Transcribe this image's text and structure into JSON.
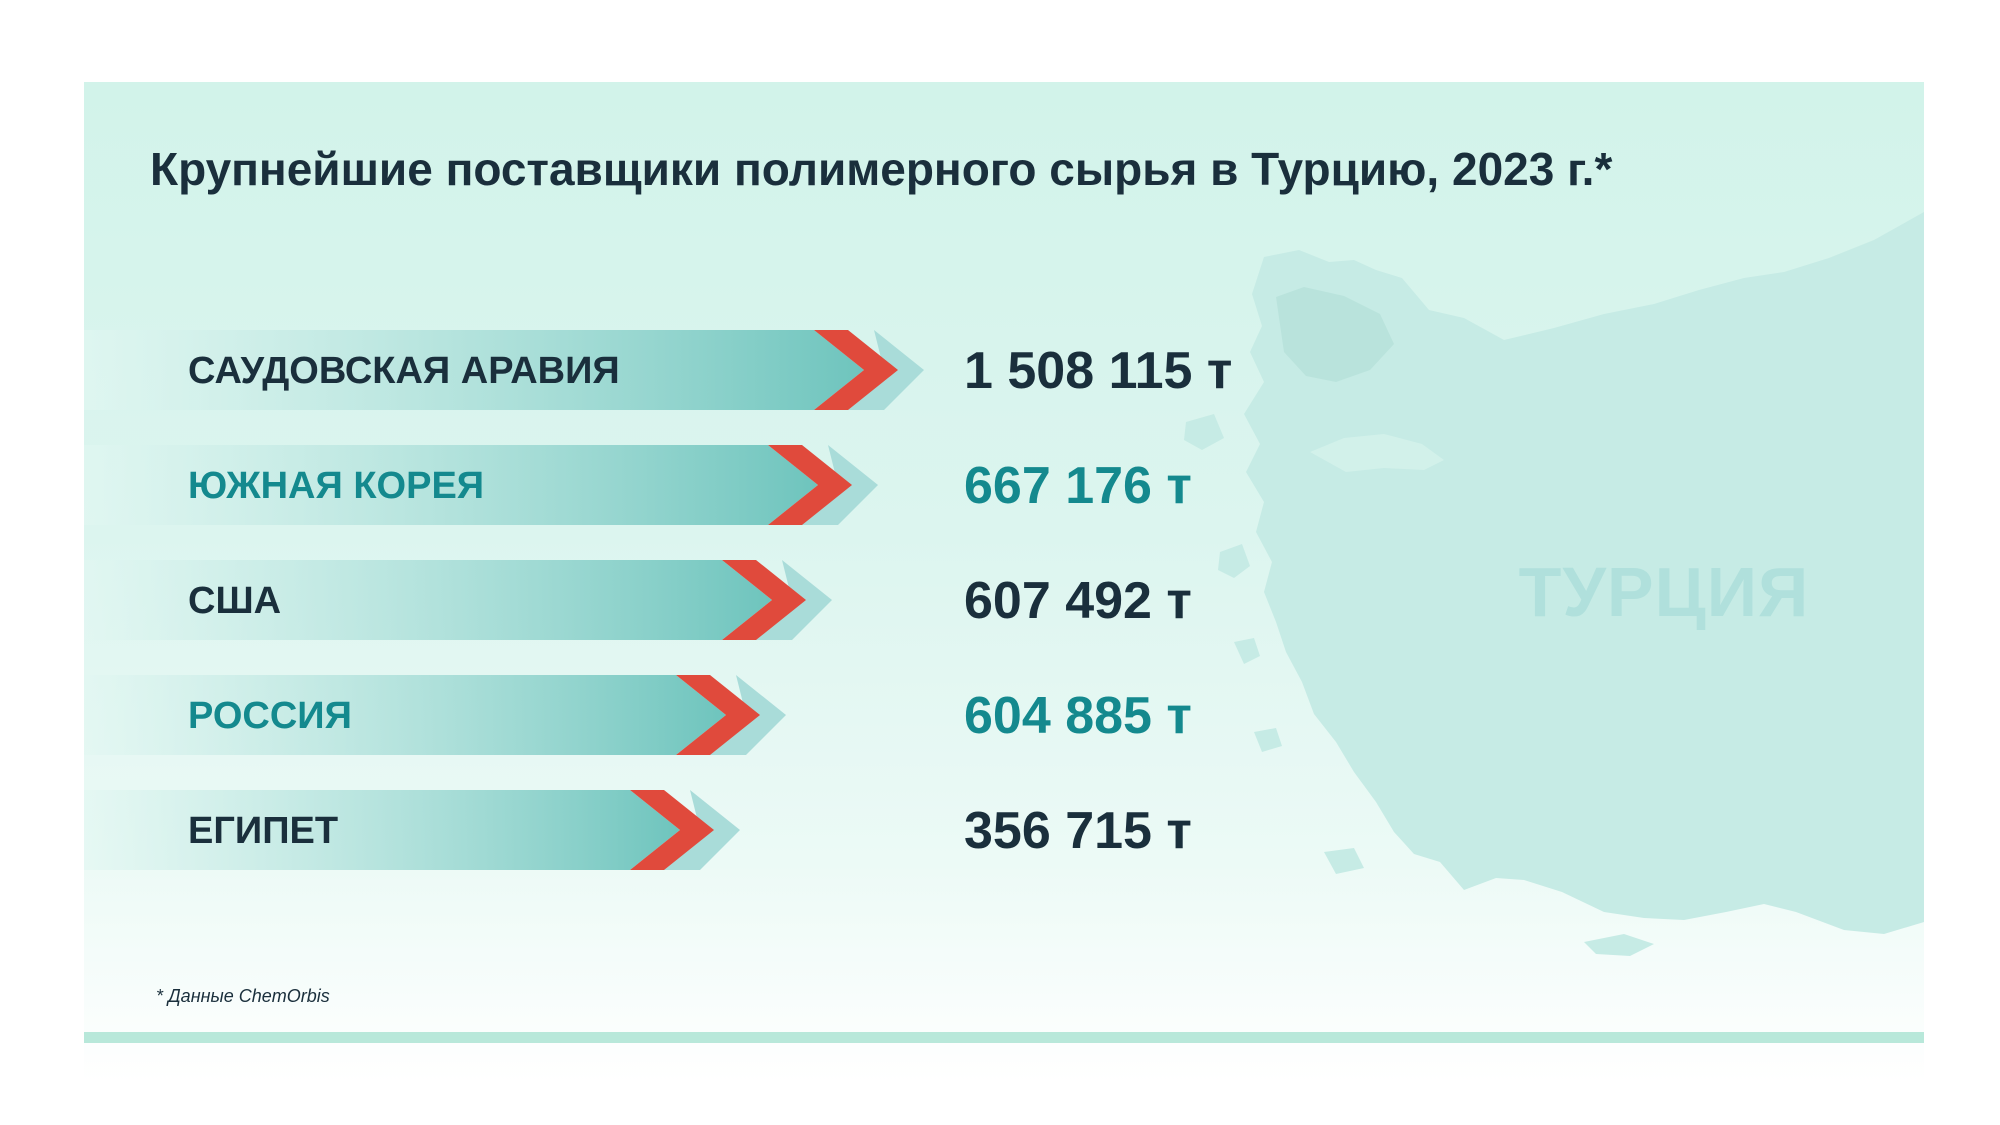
{
  "chart_data": {
    "type": "bar",
    "title": "Крупнейшие поставщики полимерного сырья в Турцию, 2023 г.*",
    "categories": [
      "САУДОВСКАЯ АРАВИЯ",
      "ЮЖНАЯ КОРЕЯ",
      "США",
      "РОССИЯ",
      "ЕГИПЕТ"
    ],
    "values": [
      1508115,
      667176,
      607492,
      604885,
      356715
    ],
    "value_labels": [
      "1 508 115 т",
      "667 176 т",
      "607 492 т",
      "604 885 т",
      "356 715 т"
    ],
    "unit": "т",
    "bars_proportional_to_values": false,
    "orientation": "horizontal",
    "grid": false
  },
  "map_label": "ТУРЦИЯ",
  "footnote": "* Данные ChemOrbis",
  "colors": {
    "text_dark": "#1a2f3c",
    "text_teal": "#14898e",
    "arrow_accent": "#e04a3c",
    "arrow_fill_end": "#6ec4bd",
    "map_fill": "#c6ebe5"
  }
}
